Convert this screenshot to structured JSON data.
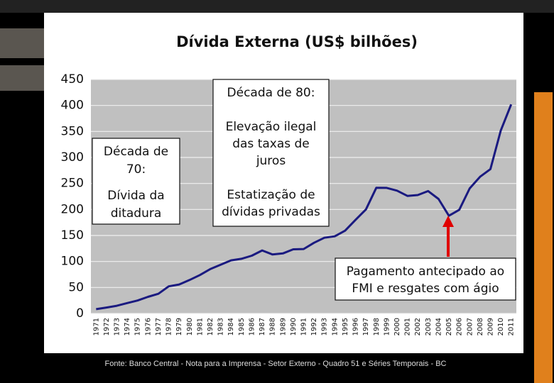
{
  "chart_data": {
    "type": "line",
    "title": "Dívida Externa (US$ bilhões)",
    "categories": [
      "1971",
      "1972",
      "1973",
      "1974",
      "1975",
      "1976",
      "1977",
      "1978",
      "1979",
      "1980",
      "1981",
      "1982",
      "1983",
      "1984",
      "1985",
      "1986",
      "1987",
      "1988",
      "1989",
      "1990",
      "1991",
      "1992",
      "1993",
      "1994",
      "1995",
      "1996",
      "1997",
      "1998",
      "1999",
      "2000",
      "2001",
      "2002",
      "2003",
      "2004",
      "2005",
      "2006",
      "2007",
      "2008",
      "2009",
      "2010",
      "2011"
    ],
    "values": [
      8.3,
      11.5,
      14.9,
      20,
      25,
      32,
      37.9,
      52.2,
      55.8,
      64.3,
      73.9,
      85.4,
      93.7,
      102.1,
      105.2,
      111.2,
      121.2,
      113.5,
      115.5,
      123.4,
      123.9,
      135.9,
      145.7,
      148.3,
      159.3,
      179.9,
      200,
      241.6,
      241.5,
      236.2,
      226.1,
      227.7,
      235.4,
      220.2,
      187.9,
      199.4,
      240.5,
      262.9,
      277.6,
      351.9,
      402
    ],
    "color": "#1a1a80",
    "ylim": [
      0,
      450
    ],
    "yticks": [
      0,
      50,
      100,
      150,
      200,
      250,
      300,
      350,
      400,
      450
    ],
    "grid": true,
    "annotations": [
      {
        "paragraphs": [
          [
            "Década de",
            "70:"
          ],
          [
            "Dívida da",
            "ditadura"
          ]
        ]
      },
      {
        "paragraphs": [
          [
            "Década de 80:"
          ],
          [
            "Elevação ilegal",
            "das taxas de",
            "juros"
          ],
          [
            "Estatização de",
            "dívidas privadas"
          ]
        ]
      },
      {
        "paragraphs": [
          [
            "Pagamento antecipado ao",
            "FMI e resgates com ágio"
          ]
        ]
      }
    ],
    "source": "Fonte: Banco Central - Nota para a Imprensa - Setor Externo - Quadro 51 e Séries Temporais - BC"
  }
}
